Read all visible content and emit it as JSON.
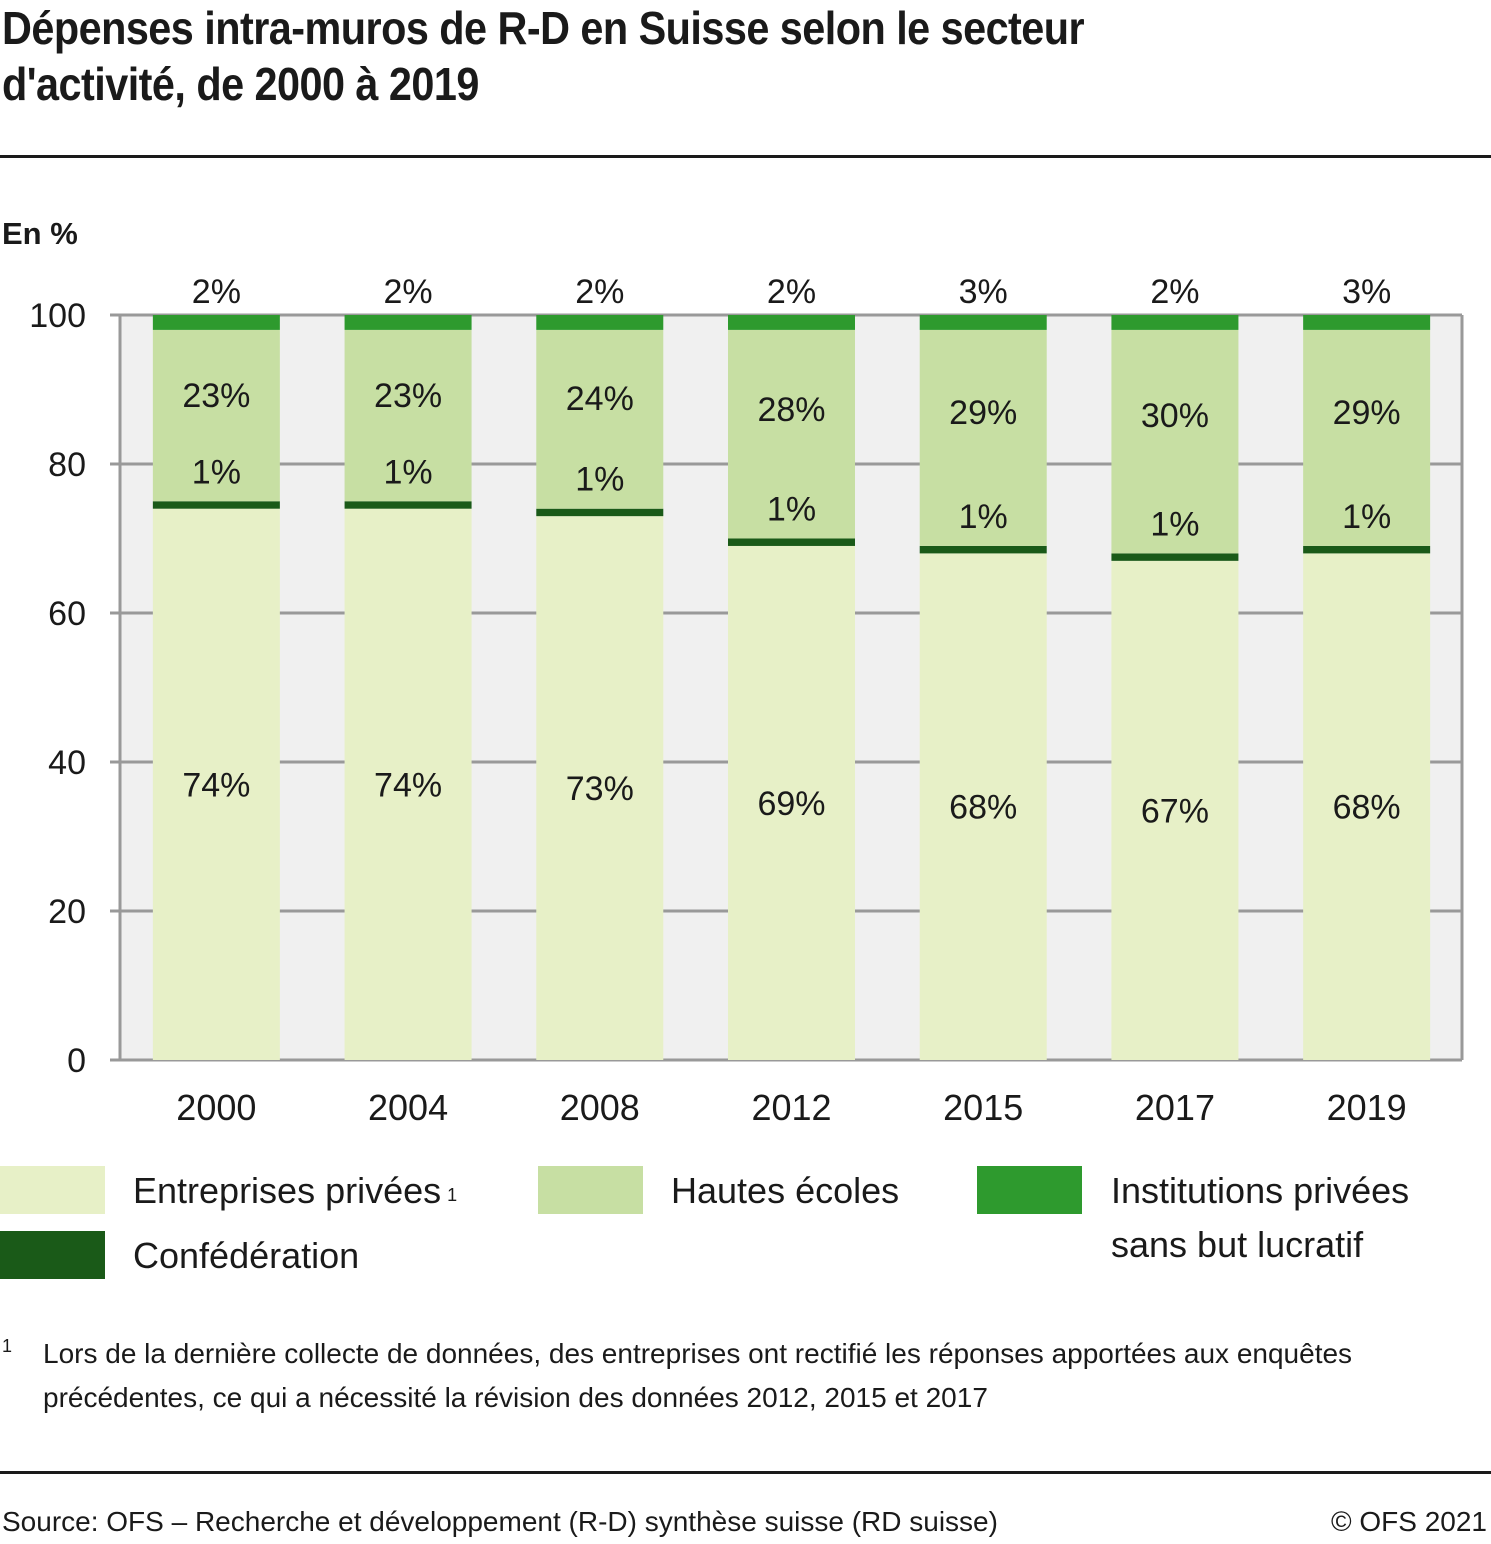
{
  "title": {
    "line1": "Dépenses intra-muros de R-D en Suisse selon le secteur",
    "line2": "d'activité, de 2000 à 2019"
  },
  "unit_label": "En %",
  "colors": {
    "entreprises": "#e7f0c7",
    "hautes_ecoles": "#c7dfa3",
    "institutions": "#2e9a2e",
    "confederation": "#1a5a18",
    "plot_background": "#f0f0f0",
    "gridline": "#999999",
    "text": "#1a1a1a"
  },
  "legend": {
    "items": [
      {
        "key": "entreprises",
        "label": "Entreprises privées",
        "footnote_ref": "1"
      },
      {
        "key": "hautes_ecoles",
        "label": "Hautes écoles"
      },
      {
        "key": "institutions",
        "label_line1": "Institutions privées",
        "label_line2": "sans but lucratif"
      },
      {
        "key": "confederation",
        "label": "Confédération"
      }
    ]
  },
  "footnote": {
    "mark": "1",
    "text": "Lors de la dernière collecte de données, des entreprises ont rectifié les réponses apportées aux enquêtes précédentes, ce qui a nécessité la révision des données 2012, 2015 et 2017"
  },
  "source": "Source: OFS – Recherche et développement (R-D) synthèse suisse (RD suisse)",
  "copyright": "© OFS 2021",
  "chart_data": {
    "type": "bar",
    "stacked": true,
    "title": "Dépenses intra-muros de R-D en Suisse selon le secteur d'activité, de 2000 à 2019",
    "xlabel": "",
    "ylabel": "En %",
    "ylim": [
      0,
      100
    ],
    "yticks": [
      0,
      20,
      40,
      60,
      80,
      100
    ],
    "grid": true,
    "legend_position": "bottom",
    "categories": [
      "2000",
      "2004",
      "2008",
      "2012",
      "2015",
      "2017",
      "2019"
    ],
    "series": [
      {
        "key": "entreprises",
        "name": "Entreprises privées",
        "values": [
          74,
          74,
          73,
          69,
          68,
          67,
          68
        ],
        "labels": [
          "74%",
          "74%",
          "73%",
          "69%",
          "68%",
          "67%",
          "68%"
        ]
      },
      {
        "key": "confederation",
        "name": "Confédération",
        "values": [
          1,
          1,
          1,
          1,
          1,
          1,
          1
        ],
        "labels": [
          "1%",
          "1%",
          "1%",
          "1%",
          "1%",
          "1%",
          "1%"
        ]
      },
      {
        "key": "hautes_ecoles",
        "name": "Hautes écoles",
        "values": [
          23,
          23,
          24,
          28,
          29,
          30,
          29
        ],
        "labels": [
          "23%",
          "23%",
          "24%",
          "28%",
          "29%",
          "30%",
          "29%"
        ]
      },
      {
        "key": "institutions",
        "name": "Institutions privées sans but lucratif",
        "values": [
          2,
          2,
          2,
          2,
          3,
          2,
          3
        ],
        "labels": [
          "2%",
          "2%",
          "2%",
          "2%",
          "3%",
          "2%",
          "3%"
        ]
      }
    ]
  }
}
